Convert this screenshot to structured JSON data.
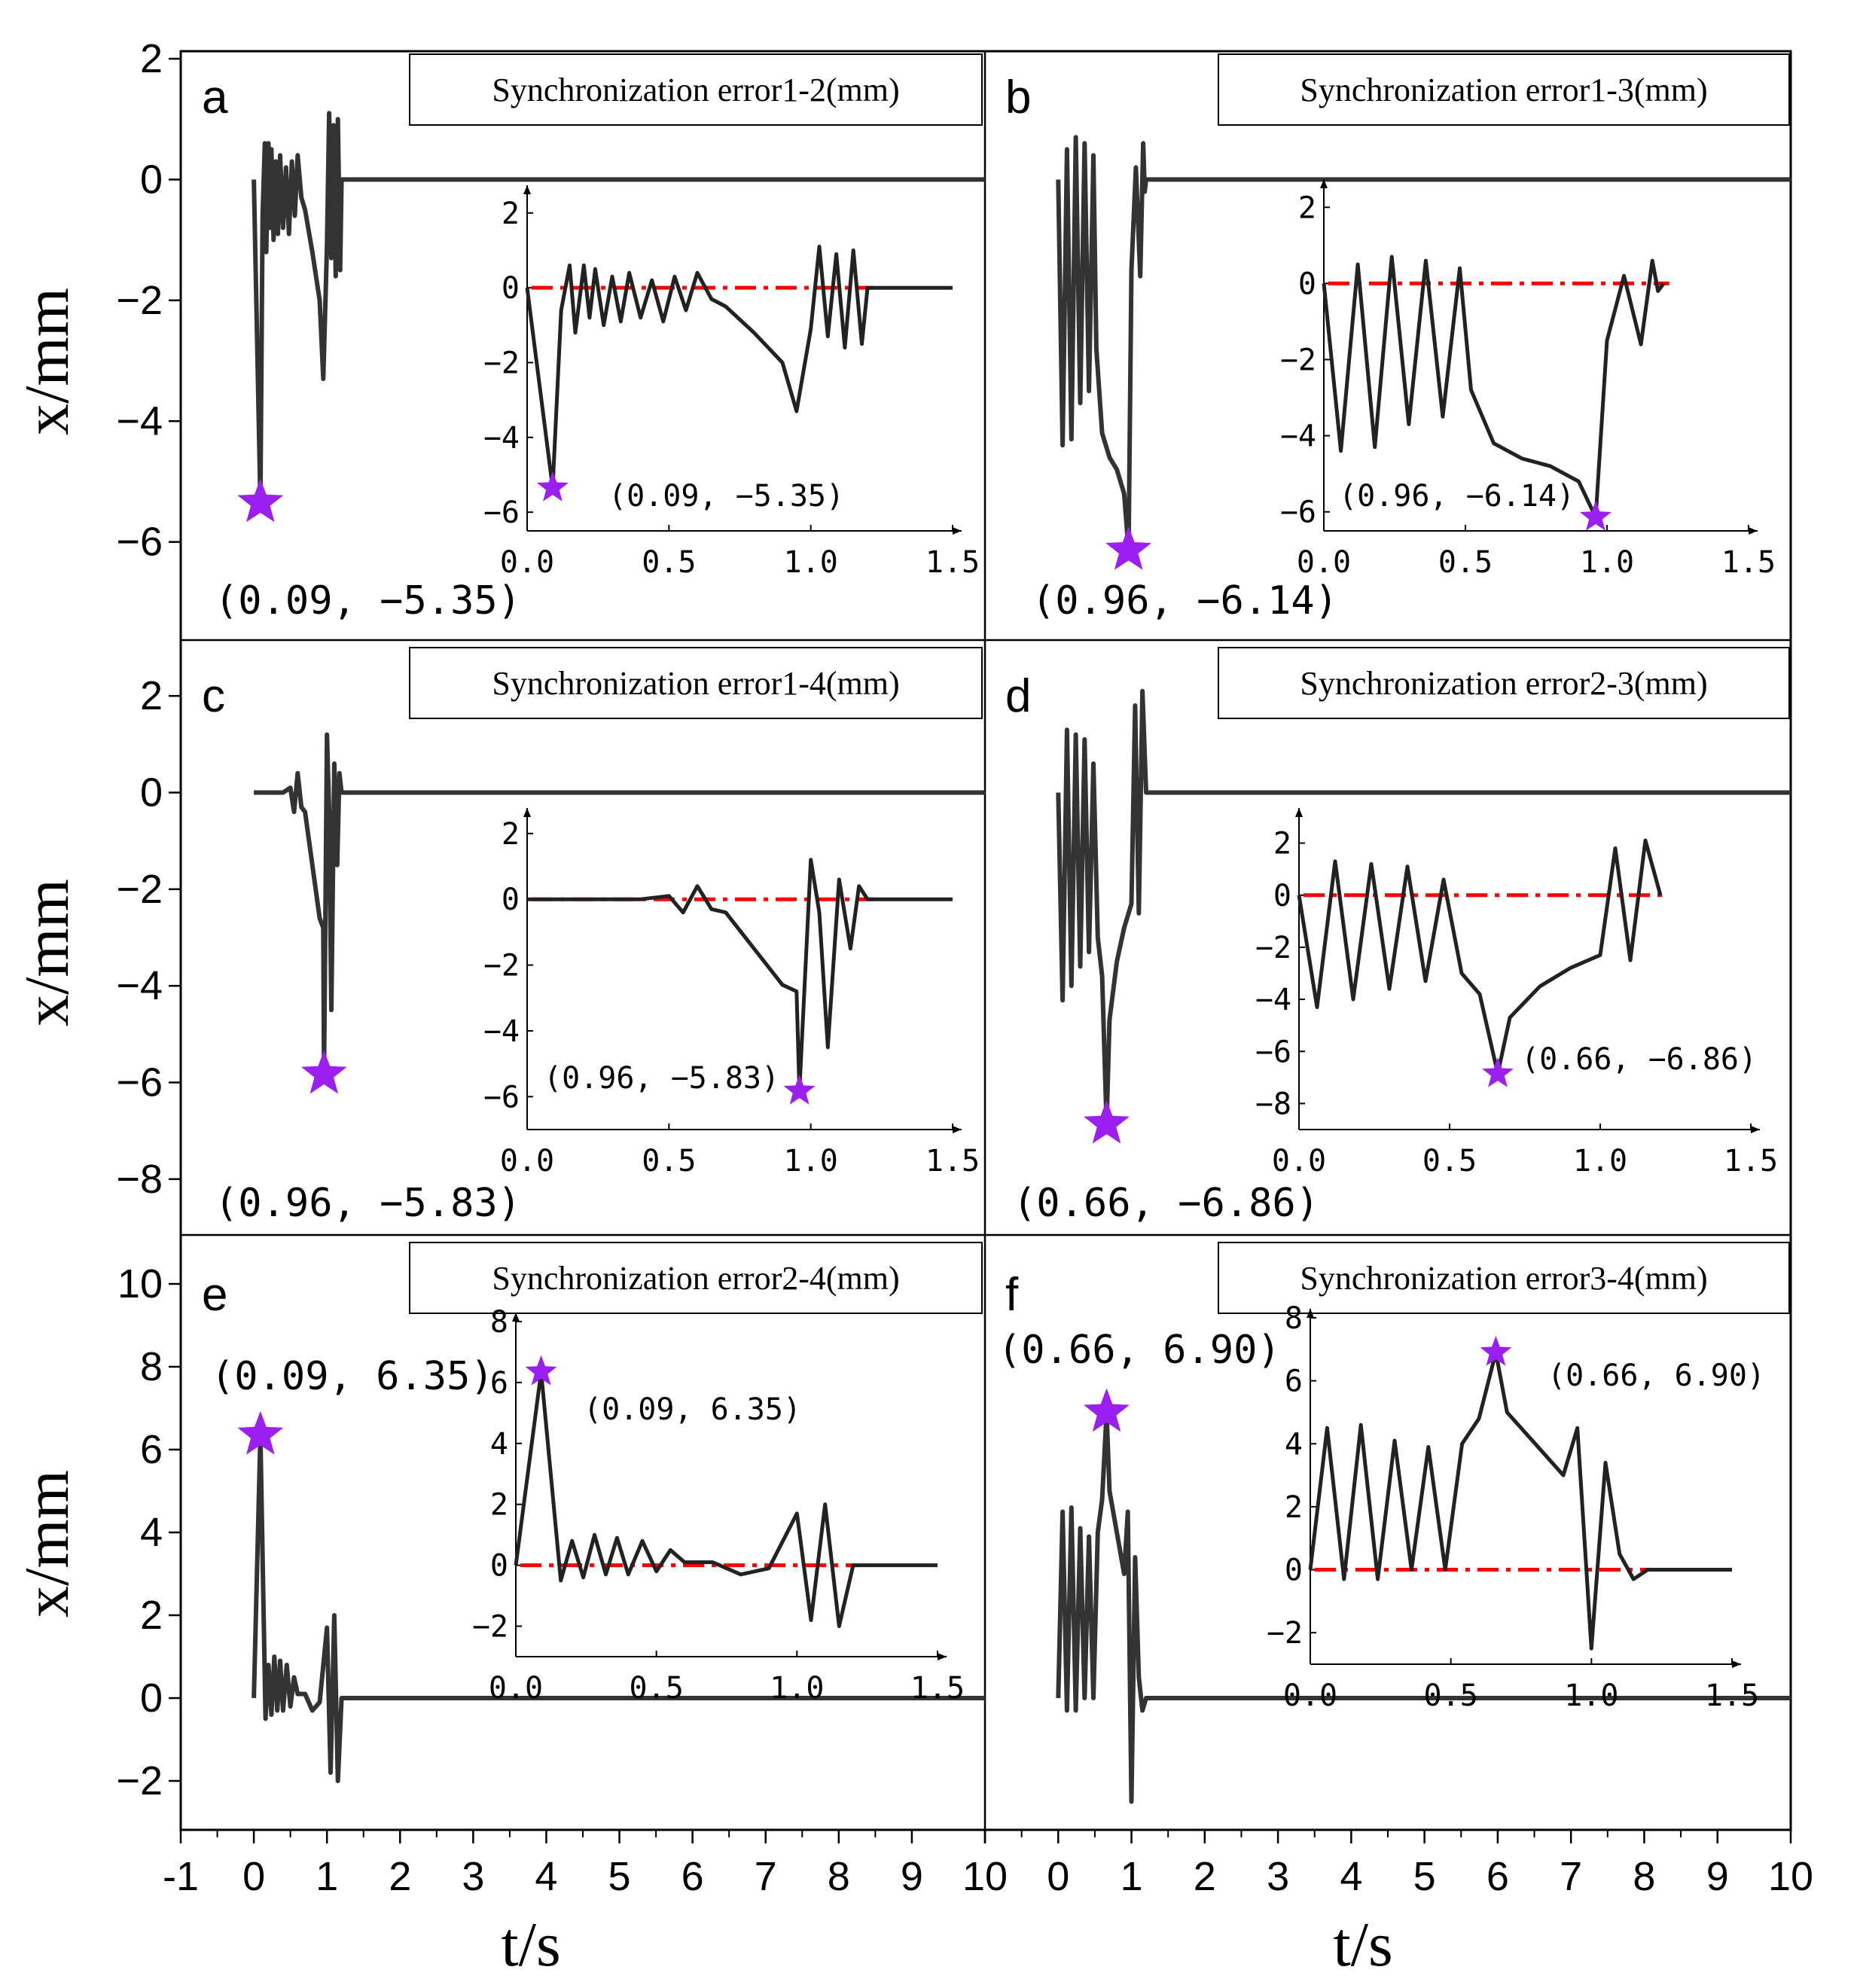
{
  "figure": {
    "xlabel": "t/s",
    "ylabel": "x/mm",
    "x_ticks": [
      "-1",
      "0",
      "1",
      "2",
      "3",
      "4",
      "5",
      "6",
      "7",
      "8",
      "9",
      "10"
    ],
    "inset_x_ticks": [
      "0.0",
      "0.5",
      "1.0",
      "1.5"
    ],
    "colors": {
      "line": "#333333",
      "reference": "#ff0000",
      "marker": "#9b1ff1"
    }
  },
  "chart_data": [
    {
      "type": "line",
      "panel": "a",
      "legend": "Synchronization error1-2(mm)",
      "xlim": [
        -1,
        10
      ],
      "ylim": [
        -7.5,
        2
      ],
      "y_ticks": [
        "2",
        "0",
        "−2",
        "−4",
        "−6"
      ],
      "peak": {
        "x": 0.09,
        "y": -5.35,
        "label": "(0.09, −5.35)"
      },
      "x": [
        0,
        0.09,
        0.12,
        0.15,
        0.17,
        0.2,
        0.22,
        0.24,
        0.27,
        0.3,
        0.33,
        0.36,
        0.4,
        0.44,
        0.48,
        0.52,
        0.56,
        0.6,
        0.65,
        0.7,
        0.8,
        0.9,
        0.95,
        1.0,
        1.03,
        1.06,
        1.09,
        1.12,
        1.15,
        1.18,
        1.2,
        1.22,
        1.5,
        10
      ],
      "y": [
        0,
        -5.35,
        -0.6,
        0.6,
        -1.2,
        0.6,
        -0.8,
        0.5,
        -1.0,
        0.3,
        -0.9,
        0.4,
        -0.8,
        0.2,
        -0.9,
        0.3,
        -0.6,
        0.4,
        -0.3,
        -0.5,
        -1.2,
        -2.0,
        -3.3,
        -1.1,
        1.1,
        -1.3,
        0.9,
        -1.6,
        1.0,
        -1.5,
        0,
        0,
        0,
        0
      ],
      "inset": {
        "ylim": [
          -6.5,
          2.5
        ],
        "y_ticks": [
          "2",
          "0",
          "−2",
          "−4",
          "−6"
        ],
        "label": "(0.09,  −5.35)"
      }
    },
    {
      "type": "line",
      "panel": "b",
      "legend": "Synchronization error1-3(mm)",
      "xlim": [
        -1,
        10
      ],
      "ylim": [
        -7.5,
        2
      ],
      "y_ticks": [],
      "peak": {
        "x": 0.96,
        "y": -6.14,
        "label": "(0.96, −6.14)"
      },
      "x": [
        0,
        0.06,
        0.12,
        0.18,
        0.24,
        0.3,
        0.36,
        0.42,
        0.48,
        0.52,
        0.6,
        0.7,
        0.8,
        0.9,
        0.96,
        1.0,
        1.06,
        1.12,
        1.16,
        1.18,
        1.2,
        10
      ],
      "y": [
        0,
        -4.4,
        0.5,
        -4.3,
        0.7,
        -3.7,
        0.6,
        -3.5,
        0.4,
        -2.8,
        -4.2,
        -4.6,
        -4.8,
        -5.2,
        -6.14,
        -1.5,
        0.2,
        -1.6,
        0.6,
        -0.2,
        0,
        0
      ],
      "inset": {
        "ylim": [
          -6.5,
          2.5
        ],
        "y_ticks": [
          "2",
          "0",
          "−2",
          "−4",
          "−6"
        ],
        "label": "(0.96, −6.14)"
      }
    },
    {
      "type": "line",
      "panel": "c",
      "legend": "Synchronization error1-4(mm)",
      "xlim": [
        -1,
        10
      ],
      "ylim": [
        -9,
        3
      ],
      "y_ticks": [
        "2",
        "0",
        "−2",
        "−4",
        "−6",
        "−8"
      ],
      "peak": {
        "x": 0.96,
        "y": -5.83,
        "label": "(0.96, −5.83)"
      },
      "x": [
        0,
        0.4,
        0.5,
        0.55,
        0.6,
        0.65,
        0.7,
        0.8,
        0.9,
        0.95,
        0.96,
        1.0,
        1.03,
        1.06,
        1.1,
        1.14,
        1.17,
        1.2,
        1.5,
        10
      ],
      "y": [
        0,
        0,
        0.1,
        -0.4,
        0.4,
        -0.3,
        -0.4,
        -1.5,
        -2.6,
        -2.8,
        -5.83,
        1.2,
        -0.4,
        -4.5,
        0.6,
        -1.5,
        0.4,
        0,
        0,
        0
      ],
      "inset": {
        "ylim": [
          -7,
          2.5
        ],
        "y_ticks": [
          "2",
          "0",
          "−2",
          "−4",
          "−6"
        ],
        "label": "(0.96, −5.83)"
      }
    },
    {
      "type": "line",
      "panel": "d",
      "legend": "Synchronization error2-3(mm)",
      "xlim": [
        -1,
        10
      ],
      "ylim": [
        -9,
        3
      ],
      "y_ticks": [],
      "peak": {
        "x": 0.66,
        "y": -6.86,
        "label": "(0.66, −6.86)"
      },
      "x": [
        0,
        0.06,
        0.12,
        0.18,
        0.24,
        0.3,
        0.36,
        0.42,
        0.48,
        0.54,
        0.6,
        0.66,
        0.7,
        0.8,
        0.9,
        1.0,
        1.05,
        1.1,
        1.15,
        1.2,
        10
      ],
      "y": [
        0,
        -4.3,
        1.3,
        -4.0,
        1.2,
        -3.6,
        1.1,
        -3.3,
        0.6,
        -3.0,
        -3.8,
        -6.86,
        -4.7,
        -3.5,
        -2.8,
        -2.3,
        1.8,
        -2.5,
        2.1,
        0,
        0
      ],
      "inset": {
        "ylim": [
          -9,
          3
        ],
        "y_ticks": [
          "2",
          "0",
          "−2",
          "−4",
          "−6",
          "−8"
        ],
        "label": "(0.66, −6.86)"
      }
    },
    {
      "type": "line",
      "panel": "e",
      "legend": "Synchronization error2-4(mm)",
      "xlim": [
        -1,
        10
      ],
      "ylim": [
        -3,
        11
      ],
      "y_ticks": [
        "10",
        "8",
        "6",
        "4",
        "2",
        "0",
        "−2"
      ],
      "peak": {
        "x": 0.09,
        "y": 6.35,
        "label": "(0.09, 6.35)"
      },
      "x": [
        0,
        0.09,
        0.16,
        0.2,
        0.24,
        0.28,
        0.32,
        0.36,
        0.4,
        0.45,
        0.5,
        0.55,
        0.6,
        0.7,
        0.8,
        0.9,
        1.0,
        1.05,
        1.1,
        1.15,
        1.2,
        1.5,
        10
      ],
      "y": [
        0,
        6.35,
        -0.5,
        0.8,
        -0.4,
        1.0,
        -0.3,
        0.9,
        -0.3,
        0.8,
        -0.2,
        0.5,
        0.1,
        0.1,
        -0.3,
        -0.1,
        1.7,
        -1.8,
        2.0,
        -2.0,
        0,
        0,
        0
      ],
      "inset": {
        "ylim": [
          -3,
          8
        ],
        "y_ticks": [
          "8",
          "6",
          "4",
          "2",
          "0",
          "−2"
        ],
        "label": "(0.09, 6.35)"
      }
    },
    {
      "type": "line",
      "panel": "f",
      "legend": "Synchronization error3-4(mm)",
      "xlim": [
        -1,
        10
      ],
      "ylim": [
        -3,
        11
      ],
      "y_ticks": [],
      "peak": {
        "x": 0.66,
        "y": 6.9,
        "label": "(0.66, 6.90)"
      },
      "x": [
        0,
        0.06,
        0.12,
        0.18,
        0.24,
        0.3,
        0.36,
        0.42,
        0.48,
        0.54,
        0.6,
        0.66,
        0.7,
        0.8,
        0.9,
        0.95,
        1.0,
        1.05,
        1.1,
        1.15,
        1.2,
        1.5,
        10
      ],
      "y": [
        0,
        4.5,
        -0.3,
        4.6,
        -0.3,
        4.1,
        0,
        3.9,
        0,
        4.0,
        4.8,
        6.9,
        5.0,
        4.0,
        3.0,
        4.5,
        -2.5,
        3.4,
        0.5,
        -0.3,
        0,
        0,
        0
      ],
      "inset": {
        "ylim": [
          -3,
          8
        ],
        "y_ticks": [
          "8",
          "6",
          "4",
          "2",
          "0",
          "−2"
        ],
        "label": "(0.66, 6.90)"
      }
    }
  ]
}
